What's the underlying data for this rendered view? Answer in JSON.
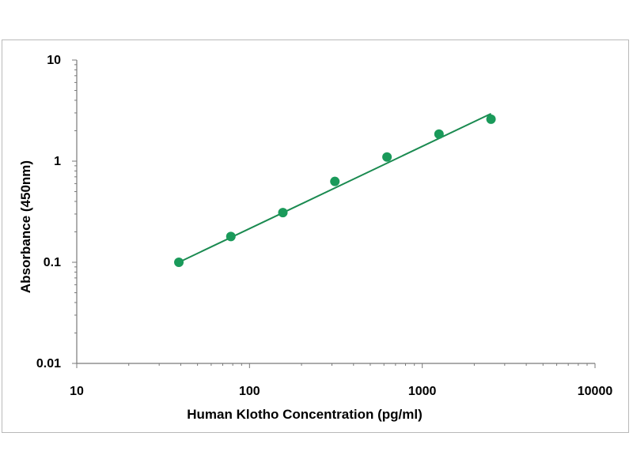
{
  "chart_data": {
    "type": "scatter",
    "title": "",
    "xlabel": "Human Klotho Concentration (pg/ml)",
    "ylabel": "Absorbance (450nm)",
    "xscale": "log",
    "yscale": "log",
    "xlim": [
      10,
      10000
    ],
    "ylim": [
      0.01,
      10
    ],
    "x_ticks": [
      "10",
      "100",
      "1000",
      "10000"
    ],
    "y_ticks": [
      "0.01",
      "0.1",
      "1",
      "10"
    ],
    "grid": false,
    "legend": "none",
    "colors": {
      "points": "#1a9a5a",
      "fit": "#1a8a50",
      "axis": "#7a7a7a"
    },
    "series": [
      {
        "points": [
          {
            "x": 39,
            "y": 0.1
          },
          {
            "x": 78,
            "y": 0.18
          },
          {
            "x": 156,
            "y": 0.31
          },
          {
            "x": 312,
            "y": 0.63
          },
          {
            "x": 625,
            "y": 1.1
          },
          {
            "x": 1250,
            "y": 1.85
          },
          {
            "x": 2500,
            "y": 2.6
          }
        ],
        "fit_line": {
          "x": [
            39,
            2500
          ],
          "y": [
            0.1,
            2.95
          ]
        }
      }
    ]
  }
}
